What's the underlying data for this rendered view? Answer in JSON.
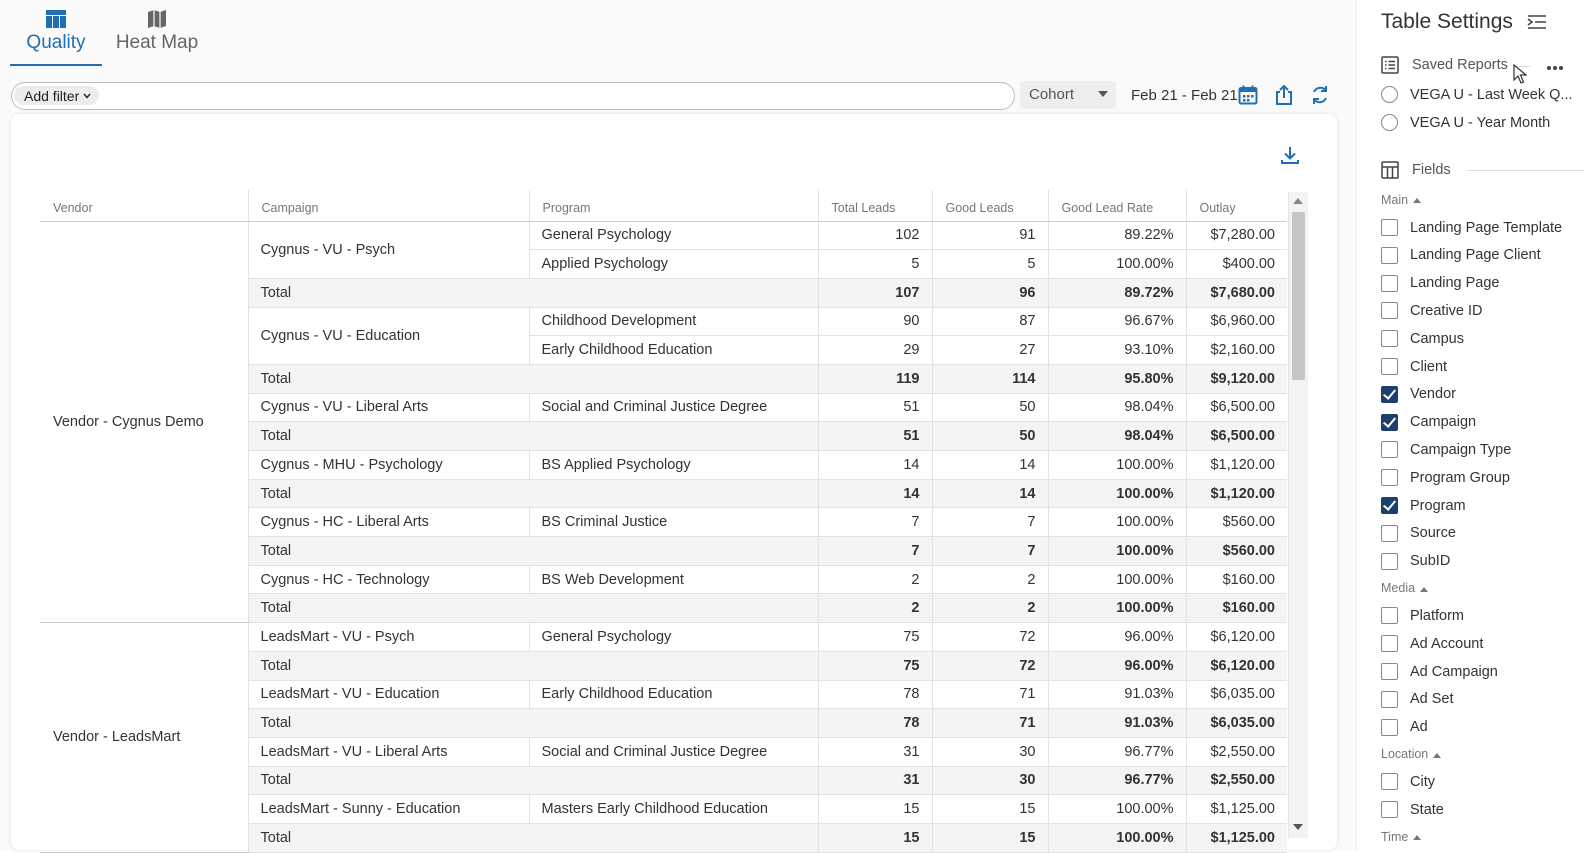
{
  "tabs": [
    {
      "label": "Quality",
      "icon": "table-icon",
      "active": true
    },
    {
      "label": "Heat Map",
      "icon": "map-icon",
      "active": false
    }
  ],
  "filter": {
    "add_label": "Add filter"
  },
  "cohort": {
    "selected": "Cohort"
  },
  "date_range": "Feb 21 - Feb 21",
  "colors": {
    "accent": "#1f6fb2",
    "checkbox_checked": "#1d3f6e",
    "total_row_bg": "#f4f4f4"
  },
  "table": {
    "columns": [
      "Vendor",
      "Campaign",
      "Program",
      "Total Leads",
      "Good Leads",
      "Good Lead Rate",
      "Outlay"
    ],
    "vendors": [
      {
        "vendor": "Vendor - Cygnus Demo",
        "groups": [
          {
            "campaign": "Cygnus - VU - Psych",
            "rows": [
              {
                "program": "General Psychology",
                "total_leads": "102",
                "good_leads": "91",
                "rate": "89.22%",
                "outlay": "$7,280.00"
              },
              {
                "program": "Applied Psychology",
                "total_leads": "5",
                "good_leads": "5",
                "rate": "100.00%",
                "outlay": "$400.00"
              }
            ],
            "total": {
              "label": "Total",
              "total_leads": "107",
              "good_leads": "96",
              "rate": "89.72%",
              "outlay": "$7,680.00"
            }
          },
          {
            "campaign": "Cygnus - VU - Education",
            "rows": [
              {
                "program": "Childhood Development",
                "total_leads": "90",
                "good_leads": "87",
                "rate": "96.67%",
                "outlay": "$6,960.00"
              },
              {
                "program": "Early Childhood Education",
                "total_leads": "29",
                "good_leads": "27",
                "rate": "93.10%",
                "outlay": "$2,160.00"
              }
            ],
            "total": {
              "label": "Total",
              "total_leads": "119",
              "good_leads": "114",
              "rate": "95.80%",
              "outlay": "$9,120.00"
            }
          },
          {
            "campaign": "Cygnus - VU - Liberal Arts",
            "rows": [
              {
                "program": "Social and Criminal Justice Degree",
                "total_leads": "51",
                "good_leads": "50",
                "rate": "98.04%",
                "outlay": "$6,500.00"
              }
            ],
            "total": {
              "label": "Total",
              "total_leads": "51",
              "good_leads": "50",
              "rate": "98.04%",
              "outlay": "$6,500.00"
            }
          },
          {
            "campaign": "Cygnus - MHU - Psychology",
            "rows": [
              {
                "program": "BS Applied Psychology",
                "total_leads": "14",
                "good_leads": "14",
                "rate": "100.00%",
                "outlay": "$1,120.00"
              }
            ],
            "total": {
              "label": "Total",
              "total_leads": "14",
              "good_leads": "14",
              "rate": "100.00%",
              "outlay": "$1,120.00"
            }
          },
          {
            "campaign": "Cygnus - HC - Liberal Arts",
            "rows": [
              {
                "program": "BS Criminal Justice",
                "total_leads": "7",
                "good_leads": "7",
                "rate": "100.00%",
                "outlay": "$560.00"
              }
            ],
            "total": {
              "label": "Total",
              "total_leads": "7",
              "good_leads": "7",
              "rate": "100.00%",
              "outlay": "$560.00"
            }
          },
          {
            "campaign": "Cygnus - HC - Technology",
            "rows": [
              {
                "program": "BS Web Development",
                "total_leads": "2",
                "good_leads": "2",
                "rate": "100.00%",
                "outlay": "$160.00"
              }
            ],
            "total": {
              "label": "Total",
              "total_leads": "2",
              "good_leads": "2",
              "rate": "100.00%",
              "outlay": "$160.00"
            }
          }
        ]
      },
      {
        "vendor": "Vendor - LeadsMart",
        "groups": [
          {
            "campaign": "LeadsMart - VU - Psych",
            "rows": [
              {
                "program": "General Psychology",
                "total_leads": "75",
                "good_leads": "72",
                "rate": "96.00%",
                "outlay": "$6,120.00"
              }
            ],
            "total": {
              "label": "Total",
              "total_leads": "75",
              "good_leads": "72",
              "rate": "96.00%",
              "outlay": "$6,120.00"
            }
          },
          {
            "campaign": "LeadsMart - VU - Education",
            "rows": [
              {
                "program": "Early Childhood Education",
                "total_leads": "78",
                "good_leads": "71",
                "rate": "91.03%",
                "outlay": "$6,035.00"
              }
            ],
            "total": {
              "label": "Total",
              "total_leads": "78",
              "good_leads": "71",
              "rate": "91.03%",
              "outlay": "$6,035.00"
            }
          },
          {
            "campaign": "LeadsMart - VU - Liberal Arts",
            "rows": [
              {
                "program": "Social and Criminal Justice Degree",
                "total_leads": "31",
                "good_leads": "30",
                "rate": "96.77%",
                "outlay": "$2,550.00"
              }
            ],
            "total": {
              "label": "Total",
              "total_leads": "31",
              "good_leads": "30",
              "rate": "96.77%",
              "outlay": "$2,550.00"
            }
          },
          {
            "campaign": "LeadsMart - Sunny - Education",
            "rows": [
              {
                "program": "Masters Early Childhood Education",
                "total_leads": "15",
                "good_leads": "15",
                "rate": "100.00%",
                "outlay": "$1,125.00"
              }
            ],
            "total": {
              "label": "Total",
              "total_leads": "15",
              "good_leads": "15",
              "rate": "100.00%",
              "outlay": "$1,125.00"
            }
          }
        ]
      }
    ]
  },
  "sidebar": {
    "title": "Table Settings",
    "saved_reports": {
      "label": "Saved Reports",
      "items": [
        "VEGA U - Last Week Q...",
        "VEGA U - Year Month"
      ]
    },
    "fields": {
      "label": "Fields",
      "groups": [
        {
          "label": "Main",
          "items": [
            {
              "label": "Landing Page Template",
              "checked": false
            },
            {
              "label": "Landing Page Client",
              "checked": false
            },
            {
              "label": "Landing Page",
              "checked": false
            },
            {
              "label": "Creative ID",
              "checked": false
            },
            {
              "label": "Campus",
              "checked": false
            },
            {
              "label": "Client",
              "checked": false
            },
            {
              "label": "Vendor",
              "checked": true
            },
            {
              "label": "Campaign",
              "checked": true
            },
            {
              "label": "Campaign Type",
              "checked": false
            },
            {
              "label": "Program Group",
              "checked": false
            },
            {
              "label": "Program",
              "checked": true
            },
            {
              "label": "Source",
              "checked": false
            },
            {
              "label": "SubID",
              "checked": false
            }
          ]
        },
        {
          "label": "Media",
          "items": [
            {
              "label": "Platform",
              "checked": false
            },
            {
              "label": "Ad Account",
              "checked": false
            },
            {
              "label": "Ad Campaign",
              "checked": false
            },
            {
              "label": "Ad Set",
              "checked": false
            },
            {
              "label": "Ad",
              "checked": false
            }
          ]
        },
        {
          "label": "Location",
          "items": [
            {
              "label": "City",
              "checked": false
            },
            {
              "label": "State",
              "checked": false
            }
          ]
        },
        {
          "label": "Time",
          "items": []
        }
      ]
    }
  }
}
